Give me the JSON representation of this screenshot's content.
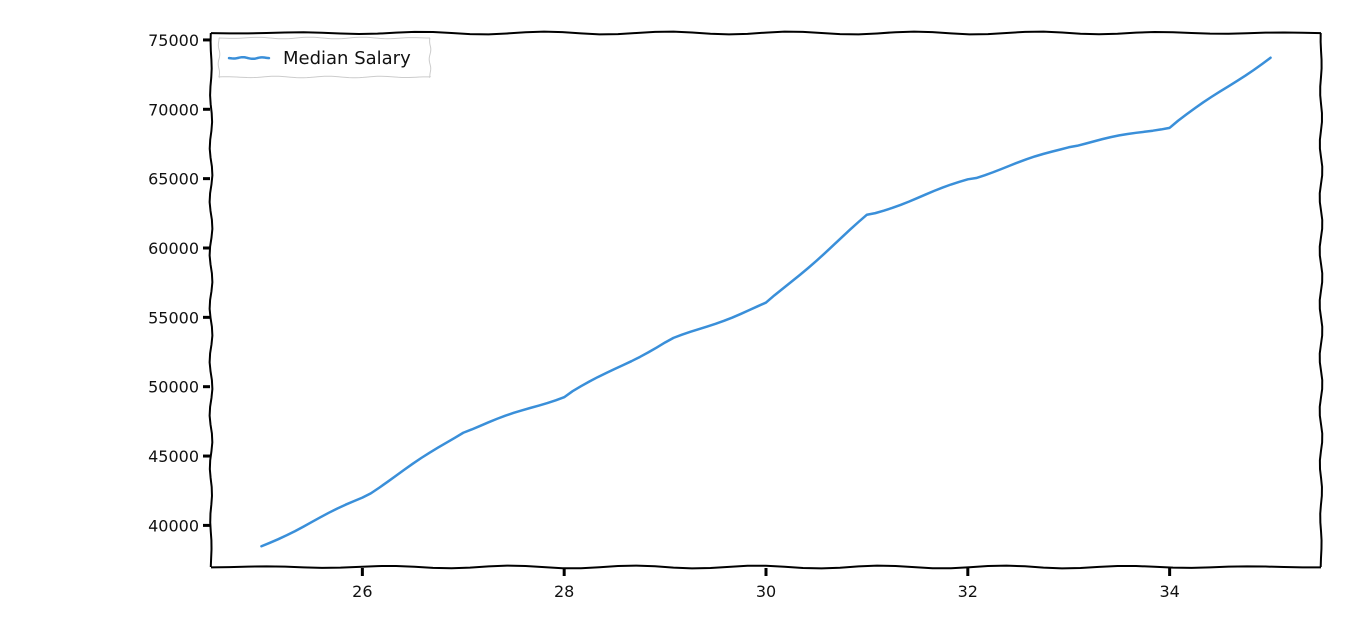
{
  "chart_data": {
    "type": "line",
    "title": "",
    "xlabel": "",
    "ylabel": "",
    "xlim": [
      24.5,
      35.5
    ],
    "ylim": [
      37000,
      75500
    ],
    "xticks": [
      26,
      28,
      30,
      32,
      34
    ],
    "yticks": [
      40000,
      45000,
      50000,
      55000,
      60000,
      65000,
      70000,
      75000
    ],
    "grid": false,
    "legend_position": "top-left",
    "style": "xkcd",
    "series": [
      {
        "name": "Median Salary",
        "color": "#3a8fd9",
        "x": [
          25,
          26,
          27,
          28,
          29,
          30,
          31,
          32,
          33,
          34,
          35
        ],
        "y": [
          38496,
          42000,
          46752,
          49320,
          53200,
          56000,
          62316,
          64928,
          67317,
          68748,
          73752
        ]
      }
    ]
  }
}
